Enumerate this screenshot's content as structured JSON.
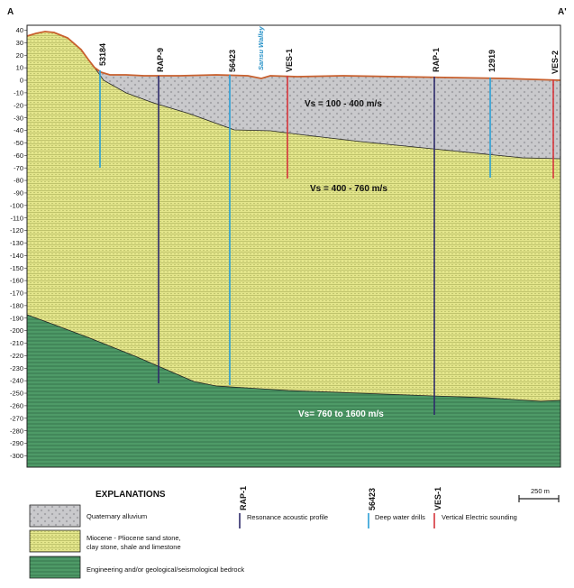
{
  "section": {
    "left_end_label": "A",
    "right_end_label": "A'",
    "y_ticks": [
      "40",
      "30",
      "20",
      "10",
      "0",
      "-10",
      "-20",
      "-30",
      "-40",
      "-50",
      "-60",
      "-70",
      "-80",
      "-90",
      "-100",
      "-110",
      "-120",
      "-130",
      "-140",
      "-150",
      "-160",
      "-170",
      "-180",
      "-190",
      "-200",
      "-210",
      "-220",
      "-230",
      "-240",
      "-250",
      "-260",
      "-270",
      "-280",
      "-290",
      "-300"
    ],
    "valley_label": "Sarısu Walley",
    "columns": [
      {
        "label": "53184",
        "color": "#2a9fd6"
      },
      {
        "label": "RAP-9",
        "color": "#2e2a6b"
      },
      {
        "label": "56423",
        "color": "#2a9fd6"
      },
      {
        "label": "VES-1",
        "color": "#d6343c"
      },
      {
        "label": "RAP-1",
        "color": "#2e2a6b"
      },
      {
        "label": "12919",
        "color": "#2a9fd6"
      },
      {
        "label": "VES-2",
        "color": "#d6343c"
      }
    ],
    "vs_labels": {
      "alluvium": "Vs = 100 - 400 m/s",
      "miocene": "Vs = 400 - 760 m/s",
      "bedrock": "Vs= 760 to 1600 m/s"
    },
    "colors": {
      "alluvium": "#c9c9cc",
      "miocene": "#e4e68c",
      "bedrock": "#4e9a67",
      "surface": "#c8602e",
      "frame": "#222222"
    }
  },
  "legend": {
    "title": "EXPLANATIONS",
    "units": [
      {
        "lines": [
          "Quaternary alluvium"
        ]
      },
      {
        "lines": [
          "Miocene - Pliocene sand stone,",
          "clay stone, shale and limestone"
        ]
      },
      {
        "lines": [
          "Engineering and/or geological/seismological bedrock"
        ]
      }
    ],
    "symbols": [
      {
        "sample": "RAP-1",
        "text": "Resonance acoustic profile",
        "color": "#2e2a6b"
      },
      {
        "sample": "56423",
        "text": "Deep water drills",
        "color": "#2a9fd6"
      },
      {
        "sample": "VES-1",
        "text": "Vertical Electric sounding",
        "color": "#d6343c"
      }
    ],
    "scale_label": "250 m"
  }
}
